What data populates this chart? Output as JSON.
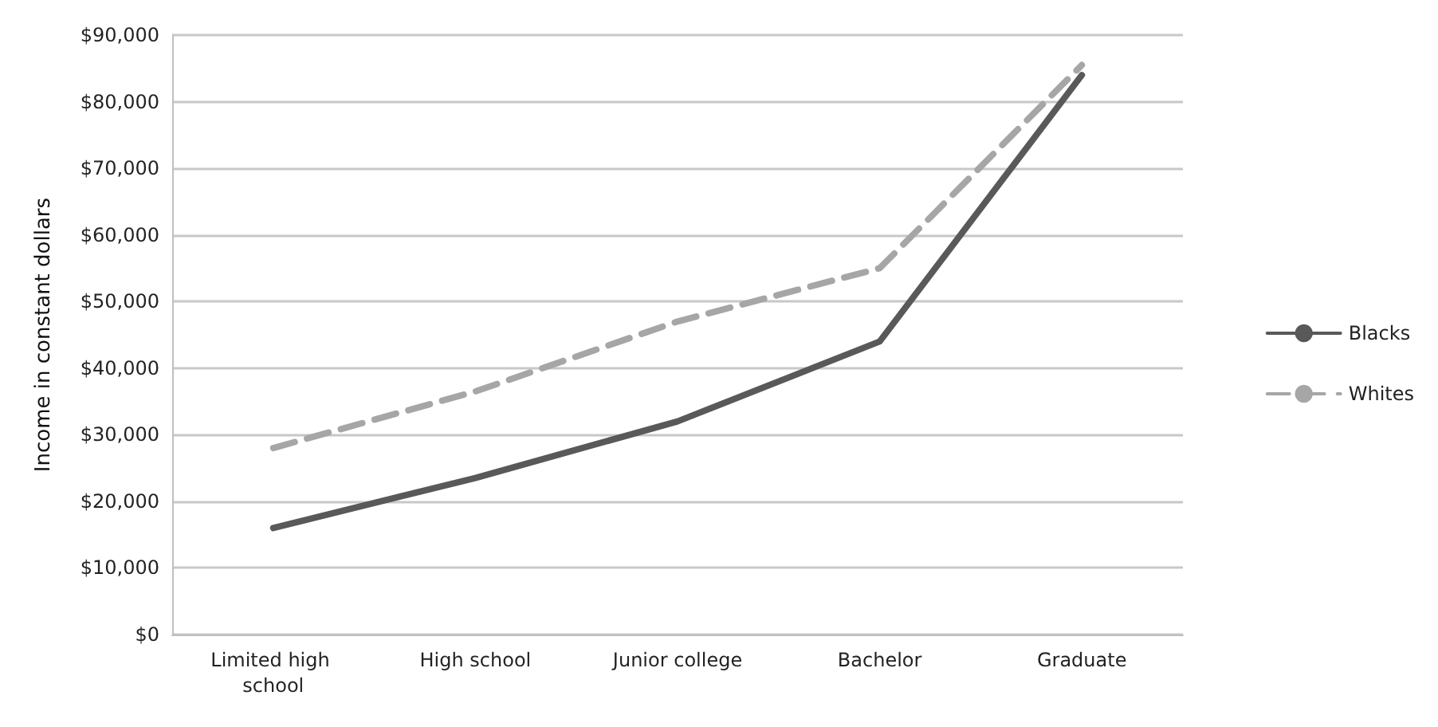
{
  "chart_data": {
    "type": "line",
    "ylabel": "Income in constant dollars",
    "categories": [
      "Limited high school",
      "High school",
      "Junior college",
      "Bachelor",
      "Graduate"
    ],
    "series": [
      {
        "name": "Blacks",
        "color": "#595959",
        "values": [
          16000,
          23500,
          32000,
          44000,
          84000
        ],
        "line_style": "solid"
      },
      {
        "name": "Whites",
        "color": "#a6a6a6",
        "values": [
          28000,
          36500,
          47000,
          55000,
          85500
        ],
        "line_style": "dashed"
      }
    ],
    "ylim": [
      0,
      90000
    ],
    "yticks": [
      {
        "value": 0,
        "label": "$0"
      },
      {
        "value": 10000,
        "label": "$10,000"
      },
      {
        "value": 20000,
        "label": "$20,000"
      },
      {
        "value": 30000,
        "label": "$30,000"
      },
      {
        "value": 40000,
        "label": "$40,000"
      },
      {
        "value": 50000,
        "label": "$50,000"
      },
      {
        "value": 60000,
        "label": "$60,000"
      },
      {
        "value": 70000,
        "label": "$70,000"
      },
      {
        "value": 80000,
        "label": "$80,000"
      },
      {
        "value": 90000,
        "label": "$90,000"
      }
    ],
    "grid": "y",
    "legend": "right",
    "marker": "none"
  }
}
